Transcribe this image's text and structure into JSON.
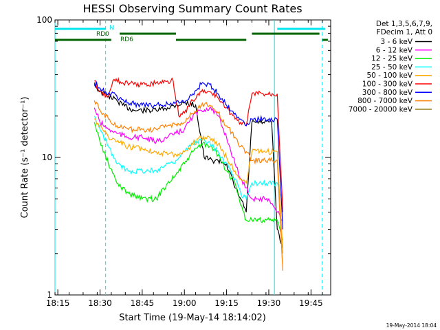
{
  "chart_data": {
    "type": "line",
    "title": "HESSI Observing Summary Count Rates",
    "xlabel": "Start Time (19-May-14 18:14:02)",
    "ylabel": "Count Rate (s⁻¹ detector⁻¹)",
    "y_scale": "log",
    "ylim": [
      1,
      100
    ],
    "xlim_minutes": [
      "18:14",
      "19:52"
    ],
    "x_ticks": [
      "18:15",
      "18:30",
      "18:45",
      "19:00",
      "19:15",
      "19:30",
      "19:45"
    ],
    "y_ticks": [
      "1",
      "10",
      "100"
    ],
    "grid": false,
    "legend_position": "right, outside plot",
    "legend_header": [
      "Det 1,3,5,6,7,9,",
      "FDecim 1, Att 0"
    ],
    "footer": "19-May-2014 18:04",
    "annotations": {
      "N_label": "N",
      "RD0_label": "RD0",
      "RD6_label": "RD6",
      "N_color": "#00e5ee",
      "RD_color": "#006400",
      "N_intervals": [
        [
          "18:14",
          "18:32"
        ],
        [
          "19:33",
          "19:50"
        ]
      ],
      "RD_intervals": [
        [
          "18:14",
          "18:34"
        ],
        [
          "18:37",
          "18:57"
        ],
        [
          "18:57",
          "19:22"
        ],
        [
          "19:24",
          "19:48"
        ],
        [
          "19:49",
          "19:51"
        ]
      ],
      "cyan_solid_lines": [
        "18:14",
        "19:32"
      ],
      "cyan_dashed_lines": [
        "18:32",
        "19:49"
      ]
    },
    "series": [
      {
        "name": "3 - 6 keV",
        "color": "#000000",
        "points": [
          [
            "18:28",
            34
          ],
          [
            "18:30",
            30
          ],
          [
            "18:33",
            28
          ],
          [
            "18:36",
            26
          ],
          [
            "18:38",
            24
          ],
          [
            "18:42",
            22
          ],
          [
            "18:46",
            22
          ],
          [
            "18:50",
            22
          ],
          [
            "18:54",
            23
          ],
          [
            "18:57",
            24
          ],
          [
            "19:00",
            25
          ],
          [
            "19:04",
            24
          ],
          [
            "19:07",
            10
          ],
          [
            "19:10",
            9.5
          ],
          [
            "19:12",
            9.5
          ],
          [
            "19:15",
            9
          ],
          [
            "19:18",
            6
          ],
          [
            "19:20",
            5
          ],
          [
            "19:22",
            4
          ],
          [
            "19:24",
            18
          ],
          [
            "19:28",
            18
          ],
          [
            "19:31",
            18
          ],
          [
            "19:33",
            3
          ],
          [
            "19:34",
            2.5
          ],
          [
            "19:35",
            2.2
          ]
        ]
      },
      {
        "name": "6 - 12 keV",
        "color": "#ff00ff",
        "points": [
          [
            "18:28",
            23
          ],
          [
            "18:30",
            18
          ],
          [
            "18:33",
            16
          ],
          [
            "18:36",
            15
          ],
          [
            "18:40",
            14
          ],
          [
            "18:45",
            14
          ],
          [
            "18:50",
            13
          ],
          [
            "18:54",
            14
          ],
          [
            "18:57",
            15
          ],
          [
            "19:00",
            16
          ],
          [
            "19:03",
            20
          ],
          [
            "19:06",
            22
          ],
          [
            "19:09",
            23
          ],
          [
            "19:12",
            20
          ],
          [
            "19:15",
            14
          ],
          [
            "19:18",
            9
          ],
          [
            "19:20",
            7
          ],
          [
            "19:22",
            6
          ],
          [
            "19:24",
            5
          ],
          [
            "19:26",
            5
          ],
          [
            "19:30",
            5
          ],
          [
            "19:33",
            4
          ],
          [
            "19:35",
            3.5
          ]
        ]
      },
      {
        "name": "12 - 25 keV",
        "color": "#00ee00",
        "points": [
          [
            "18:28",
            18
          ],
          [
            "18:30",
            13
          ],
          [
            "18:33",
            9
          ],
          [
            "18:36",
            6.5
          ],
          [
            "18:40",
            5.5
          ],
          [
            "18:45",
            5
          ],
          [
            "18:50",
            5
          ],
          [
            "18:54",
            6.5
          ],
          [
            "18:57",
            7.5
          ],
          [
            "19:00",
            9
          ],
          [
            "19:03",
            11
          ],
          [
            "19:06",
            12.5
          ],
          [
            "19:09",
            12
          ],
          [
            "19:12",
            10.5
          ],
          [
            "19:15",
            8
          ],
          [
            "19:18",
            6.5
          ],
          [
            "19:20",
            4.5
          ],
          [
            "19:22",
            3.5
          ],
          [
            "19:24",
            3.5
          ],
          [
            "19:28",
            3.5
          ],
          [
            "19:33",
            3.5
          ],
          [
            "19:35",
            2.5
          ]
        ]
      },
      {
        "name": "25 - 50 keV",
        "color": "#00ffff",
        "points": [
          [
            "18:28",
            20
          ],
          [
            "18:30",
            16
          ],
          [
            "18:33",
            12
          ],
          [
            "18:36",
            9
          ],
          [
            "18:40",
            8
          ],
          [
            "18:45",
            8
          ],
          [
            "18:50",
            8
          ],
          [
            "18:54",
            9
          ],
          [
            "18:57",
            9.5
          ],
          [
            "19:00",
            11
          ],
          [
            "19:03",
            12.5
          ],
          [
            "19:06",
            13.5
          ],
          [
            "19:09",
            13
          ],
          [
            "19:12",
            11
          ],
          [
            "19:15",
            9
          ],
          [
            "19:18",
            7
          ],
          [
            "19:20",
            5.5
          ],
          [
            "19:22",
            5
          ],
          [
            "19:24",
            6.5
          ],
          [
            "19:28",
            6.5
          ],
          [
            "19:33",
            6.5
          ],
          [
            "19:35",
            4.5
          ]
        ]
      },
      {
        "name": "50 - 100 keV",
        "color": "#ffaa00",
        "points": [
          [
            "18:28",
            19
          ],
          [
            "18:30",
            17
          ],
          [
            "18:33",
            14
          ],
          [
            "18:36",
            13
          ],
          [
            "18:40",
            12
          ],
          [
            "18:45",
            11.5
          ],
          [
            "18:50",
            11
          ],
          [
            "18:54",
            10.5
          ],
          [
            "18:57",
            10.5
          ],
          [
            "19:00",
            11
          ],
          [
            "19:03",
            12.5
          ],
          [
            "19:06",
            14
          ],
          [
            "19:09",
            14
          ],
          [
            "19:12",
            12.5
          ],
          [
            "19:15",
            10
          ],
          [
            "19:18",
            8
          ],
          [
            "19:20",
            7
          ],
          [
            "19:22",
            6.5
          ],
          [
            "19:24",
            11
          ],
          [
            "19:28",
            11
          ],
          [
            "19:33",
            11
          ],
          [
            "19:35",
            2
          ]
        ]
      },
      {
        "name": "100 - 300 keV",
        "color": "#ff0000",
        "points": [
          [
            "18:28",
            36
          ],
          [
            "18:30",
            30
          ],
          [
            "18:33",
            28
          ],
          [
            "18:35",
            37
          ],
          [
            "18:38",
            35
          ],
          [
            "18:42",
            34
          ],
          [
            "18:46",
            34
          ],
          [
            "18:50",
            35
          ],
          [
            "18:54",
            36
          ],
          [
            "18:56",
            36
          ],
          [
            "18:58",
            20
          ],
          [
            "19:00",
            21
          ],
          [
            "19:03",
            26
          ],
          [
            "19:06",
            30
          ],
          [
            "19:09",
            30
          ],
          [
            "19:12",
            27
          ],
          [
            "19:15",
            23
          ],
          [
            "19:18",
            19
          ],
          [
            "19:20",
            18
          ],
          [
            "19:22",
            17
          ],
          [
            "19:24",
            29
          ],
          [
            "19:28",
            29
          ],
          [
            "19:33",
            29
          ],
          [
            "19:35",
            4
          ]
        ]
      },
      {
        "name": "300 - 800 keV",
        "color": "#0000ff",
        "points": [
          [
            "18:28",
            35
          ],
          [
            "18:30",
            32
          ],
          [
            "18:32",
            30
          ],
          [
            "18:34",
            29
          ],
          [
            "18:37",
            27
          ],
          [
            "18:40",
            25
          ],
          [
            "18:45",
            24
          ],
          [
            "18:50",
            24
          ],
          [
            "18:54",
            24.5
          ],
          [
            "18:57",
            25
          ],
          [
            "19:00",
            25
          ],
          [
            "19:03",
            29
          ],
          [
            "19:06",
            34
          ],
          [
            "19:09",
            34
          ],
          [
            "19:12",
            29
          ],
          [
            "19:15",
            24
          ],
          [
            "19:18",
            21
          ],
          [
            "19:20",
            19
          ],
          [
            "19:22",
            17
          ],
          [
            "19:24",
            19
          ],
          [
            "19:28",
            19
          ],
          [
            "19:33",
            19
          ],
          [
            "19:35",
            3
          ]
        ]
      },
      {
        "name": "800 - 7000 keV",
        "color": "#ff8000",
        "points": [
          [
            "18:28",
            26
          ],
          [
            "18:30",
            22
          ],
          [
            "18:33",
            19
          ],
          [
            "18:36",
            17
          ],
          [
            "18:40",
            16
          ],
          [
            "18:45",
            16
          ],
          [
            "18:50",
            16
          ],
          [
            "18:54",
            17
          ],
          [
            "18:57",
            17.5
          ],
          [
            "19:00",
            18
          ],
          [
            "19:03",
            21
          ],
          [
            "19:06",
            24
          ],
          [
            "19:09",
            24
          ],
          [
            "19:12",
            21
          ],
          [
            "19:15",
            17
          ],
          [
            "19:18",
            14
          ],
          [
            "19:20",
            12
          ],
          [
            "19:22",
            11
          ],
          [
            "19:24",
            9.5
          ],
          [
            "19:28",
            9.5
          ],
          [
            "19:33",
            9.5
          ],
          [
            "19:35",
            1.5
          ]
        ]
      },
      {
        "name": "7000 - 20000 keV",
        "color": "#8b7500",
        "points": []
      }
    ]
  }
}
